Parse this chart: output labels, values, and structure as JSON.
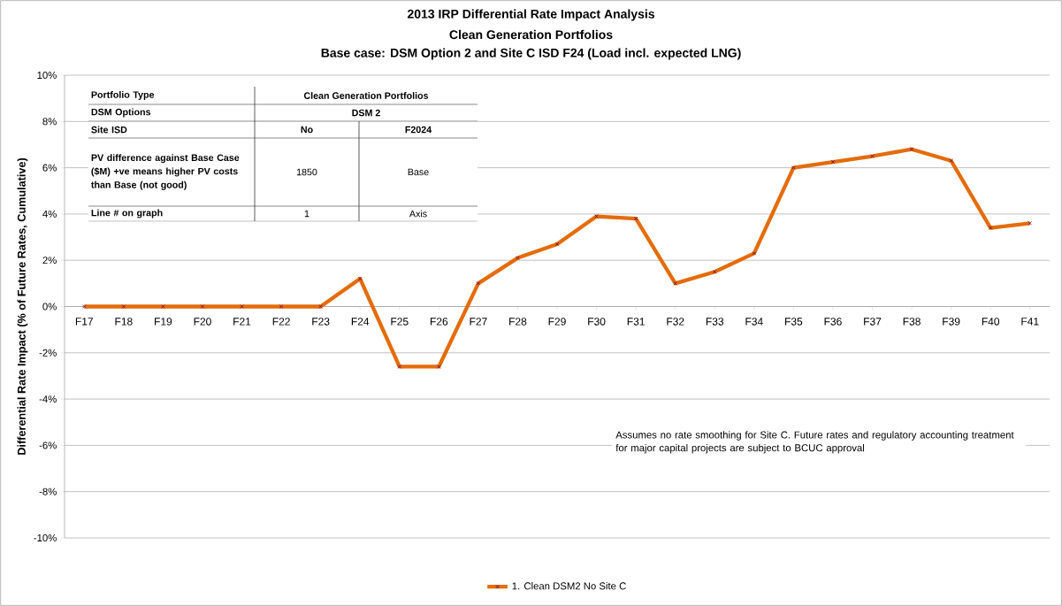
{
  "chart_data": {
    "type": "line",
    "title": "2013 IRP Differential Rate Impact Analysis",
    "subtitle": "Clean Generation Portfolios",
    "ylabel": "Differential Rate Impact (% of Future Rates, Cumulative)",
    "categories": [
      "F17",
      "F18",
      "F19",
      "F20",
      "F21",
      "F22",
      "F23",
      "F24",
      "F25",
      "F26",
      "F27",
      "F28",
      "F29",
      "F30",
      "F31",
      "F32",
      "F33",
      "F34",
      "F35",
      "F36",
      "F37",
      "F38",
      "F39",
      "F40",
      "F41"
    ],
    "series": [
      {
        "name": "1. Clean DSM2 No Site C",
        "color": "#e46c0a",
        "values": [
          0,
          0,
          0,
          0,
          0,
          0,
          0,
          1.2,
          -2.6,
          -2.6,
          1.0,
          2.1,
          2.7,
          3.9,
          3.8,
          1.0,
          1.5,
          2.3,
          6.0,
          6.25,
          6.5,
          6.8,
          6.3,
          3.4,
          3.6
        ]
      }
    ],
    "ylim": [
      -10,
      10
    ],
    "yticks": [
      {
        "value": -10,
        "label": "-10%"
      },
      {
        "value": -8,
        "label": "-8%"
      },
      {
        "value": -6,
        "label": "-6%"
      },
      {
        "value": -4,
        "label": "-4%"
      },
      {
        "value": -2,
        "label": "-2%"
      },
      {
        "value": 0,
        "label": "0%"
      },
      {
        "value": 2,
        "label": "2%"
      },
      {
        "value": 4,
        "label": "4%"
      },
      {
        "value": 6,
        "label": "6%"
      },
      {
        "value": 8,
        "label": "8%"
      },
      {
        "value": 10,
        "label": "10%"
      }
    ],
    "grid": "y",
    "legend": "bottom",
    "marker": "cross",
    "line_style": "solid",
    "annotations": [
      "Base case: DSM Option 2 and Site C ISD F24 (Load incl. expected LNG)",
      "Portfolio Type",
      "Clean Generation Portfolios",
      "DSM Options",
      "DSM 2",
      "Site ISD",
      "No",
      "F2024",
      "PV difference against Base Case ($M) +ve means higher PV costs than Base (not good)",
      "1850",
      "Base",
      "Line # on graph",
      "1",
      "Axis",
      "Assumes no rate smoothing for Site C. Future rates and regulatory accounting treatment for major capital projects are subject to BCUC approval"
    ]
  }
}
